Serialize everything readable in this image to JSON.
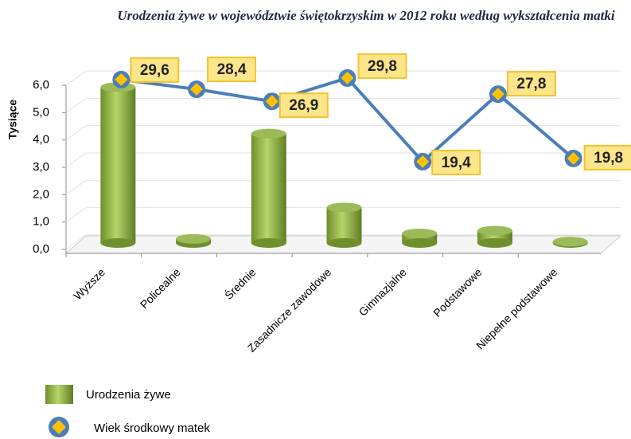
{
  "chart_data": {
    "type": "bar-line",
    "title": "Urodzenia żywe w województwie świętokrzyskim w 2012 roku według wykształcenia matki",
    "y_label": "Tysiące",
    "categories": [
      "Wyższe",
      "Policealne",
      "Średnie",
      "Zasadnicze zawodowe",
      "Gimnazjalne",
      "Podstawowe",
      "Niepełne podstawowe"
    ],
    "ylim": [
      0,
      6
    ],
    "yticks": [
      {
        "value": 0,
        "label": "0,0"
      },
      {
        "value": 1,
        "label": "1,0"
      },
      {
        "value": 2,
        "label": "2,0"
      },
      {
        "value": 3,
        "label": "3,0"
      },
      {
        "value": 4,
        "label": "4,0"
      },
      {
        "value": 5,
        "label": "5,0"
      },
      {
        "value": 6,
        "label": "6,0"
      }
    ],
    "y2lim": [
      8.5,
      28.9
    ],
    "grid": true,
    "series": [
      {
        "name": "Urodzenia żywe",
        "type": "bar",
        "color": "#9bbb59",
        "values": [
          5.7,
          0.15,
          4.0,
          1.3,
          0.35,
          0.45,
          0.05
        ]
      },
      {
        "name": "Wiek środkowy matek",
        "type": "line",
        "axis": "y2",
        "color": "#4a7ebb",
        "values": [
          29.6,
          28.4,
          26.9,
          29.8,
          19.4,
          27.8,
          19.8
        ],
        "value_labels": [
          "29,6",
          "28,4",
          "26,9",
          "29,8",
          "19,4",
          "27,8",
          "19,8"
        ]
      }
    ]
  }
}
